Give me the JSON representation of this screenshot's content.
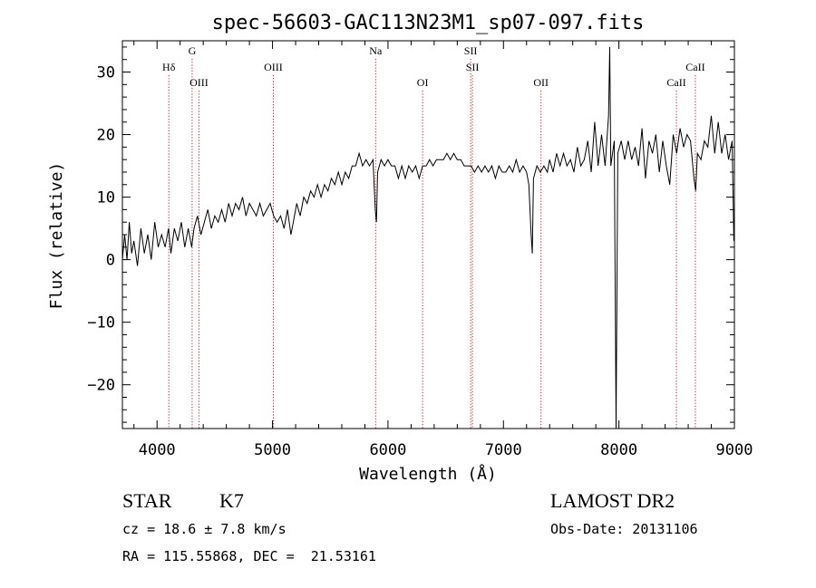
{
  "chart_data": {
    "type": "line",
    "title": "spec-56603-GAC113N23M1_sp07-097.fits",
    "xlabel": "Wavelength (Å)",
    "ylabel": "Flux (relative)",
    "xlim": [
      3700,
      9000
    ],
    "ylim": [
      -27,
      35
    ],
    "xticks": [
      4000,
      5000,
      6000,
      7000,
      8000,
      9000
    ],
    "yticks": [
      -20,
      -10,
      0,
      10,
      20,
      30
    ],
    "x_minor_step": 200,
    "y_minor_step": 2,
    "series": [
      {
        "points": [
          [
            3700,
            0
          ],
          [
            3720,
            4
          ],
          [
            3740,
            0
          ],
          [
            3760,
            6
          ],
          [
            3780,
            1
          ],
          [
            3800,
            3
          ],
          [
            3830,
            -1
          ],
          [
            3860,
            5
          ],
          [
            3890,
            1
          ],
          [
            3920,
            4
          ],
          [
            3950,
            0
          ],
          [
            3980,
            6
          ],
          [
            4010,
            2
          ],
          [
            4040,
            4
          ],
          [
            4070,
            2
          ],
          [
            4100,
            5
          ],
          [
            4120,
            1
          ],
          [
            4150,
            5
          ],
          [
            4180,
            3
          ],
          [
            4210,
            6
          ],
          [
            4240,
            2
          ],
          [
            4270,
            5
          ],
          [
            4300,
            2
          ],
          [
            4320,
            5
          ],
          [
            4350,
            7
          ],
          [
            4380,
            4
          ],
          [
            4410,
            6
          ],
          [
            4440,
            8
          ],
          [
            4470,
            5
          ],
          [
            4500,
            7
          ],
          [
            4530,
            6
          ],
          [
            4560,
            8
          ],
          [
            4590,
            6
          ],
          [
            4620,
            9
          ],
          [
            4650,
            7
          ],
          [
            4680,
            9
          ],
          [
            4710,
            8
          ],
          [
            4740,
            10
          ],
          [
            4770,
            7
          ],
          [
            4800,
            9
          ],
          [
            4830,
            8
          ],
          [
            4860,
            7
          ],
          [
            4890,
            9
          ],
          [
            4920,
            7
          ],
          [
            4950,
            8
          ],
          [
            4980,
            9
          ],
          [
            5010,
            7
          ],
          [
            5040,
            6
          ],
          [
            5070,
            7
          ],
          [
            5100,
            5
          ],
          [
            5130,
            8
          ],
          [
            5160,
            4
          ],
          [
            5180,
            6
          ],
          [
            5210,
            9
          ],
          [
            5240,
            7
          ],
          [
            5270,
            10
          ],
          [
            5300,
            9
          ],
          [
            5330,
            11
          ],
          [
            5360,
            10
          ],
          [
            5390,
            12
          ],
          [
            5420,
            10
          ],
          [
            5450,
            12
          ],
          [
            5480,
            11
          ],
          [
            5510,
            13
          ],
          [
            5540,
            12
          ],
          [
            5570,
            14
          ],
          [
            5600,
            12
          ],
          [
            5630,
            14
          ],
          [
            5660,
            13
          ],
          [
            5690,
            15
          ],
          [
            5720,
            15
          ],
          [
            5750,
            17
          ],
          [
            5780,
            15
          ],
          [
            5810,
            16
          ],
          [
            5840,
            15
          ],
          [
            5870,
            16
          ],
          [
            5890,
            8
          ],
          [
            5900,
            6
          ],
          [
            5910,
            14
          ],
          [
            5940,
            16
          ],
          [
            5970,
            15
          ],
          [
            6000,
            16
          ],
          [
            6030,
            15
          ],
          [
            6060,
            15
          ],
          [
            6090,
            13
          ],
          [
            6120,
            15
          ],
          [
            6150,
            13
          ],
          [
            6180,
            15
          ],
          [
            6210,
            14
          ],
          [
            6240,
            15
          ],
          [
            6270,
            13
          ],
          [
            6300,
            15
          ],
          [
            6330,
            15
          ],
          [
            6360,
            16
          ],
          [
            6390,
            15
          ],
          [
            6420,
            16
          ],
          [
            6450,
            16
          ],
          [
            6480,
            16
          ],
          [
            6510,
            17
          ],
          [
            6540,
            16
          ],
          [
            6570,
            17
          ],
          [
            6600,
            16
          ],
          [
            6630,
            16
          ],
          [
            6660,
            15
          ],
          [
            6690,
            15
          ],
          [
            6720,
            15
          ],
          [
            6750,
            14
          ],
          [
            6780,
            15
          ],
          [
            6810,
            14
          ],
          [
            6840,
            15
          ],
          [
            6870,
            14
          ],
          [
            6900,
            15
          ],
          [
            6930,
            13
          ],
          [
            6960,
            15
          ],
          [
            6990,
            14
          ],
          [
            7020,
            14
          ],
          [
            7050,
            15
          ],
          [
            7080,
            14
          ],
          [
            7110,
            16
          ],
          [
            7140,
            14
          ],
          [
            7170,
            15
          ],
          [
            7200,
            14
          ],
          [
            7220,
            12
          ],
          [
            7240,
            4
          ],
          [
            7250,
            1
          ],
          [
            7260,
            13
          ],
          [
            7290,
            15
          ],
          [
            7320,
            14
          ],
          [
            7350,
            15
          ],
          [
            7380,
            14
          ],
          [
            7400,
            16
          ],
          [
            7430,
            14
          ],
          [
            7460,
            17
          ],
          [
            7490,
            15
          ],
          [
            7520,
            17
          ],
          [
            7550,
            15
          ],
          [
            7580,
            16
          ],
          [
            7610,
            14
          ],
          [
            7640,
            18
          ],
          [
            7670,
            15
          ],
          [
            7700,
            16
          ],
          [
            7730,
            19
          ],
          [
            7760,
            14
          ],
          [
            7790,
            22
          ],
          [
            7820,
            15
          ],
          [
            7850,
            20
          ],
          [
            7880,
            15
          ],
          [
            7910,
            23
          ],
          [
            7920,
            34
          ],
          [
            7930,
            15
          ],
          [
            7960,
            19
          ],
          [
            7975,
            -27
          ],
          [
            7990,
            17
          ],
          [
            8020,
            19
          ],
          [
            8050,
            16
          ],
          [
            8080,
            19
          ],
          [
            8110,
            16
          ],
          [
            8140,
            18
          ],
          [
            8170,
            15
          ],
          [
            8200,
            21
          ],
          [
            8230,
            13
          ],
          [
            8260,
            19
          ],
          [
            8290,
            17
          ],
          [
            8320,
            20
          ],
          [
            8350,
            14
          ],
          [
            8380,
            19
          ],
          [
            8410,
            15
          ],
          [
            8440,
            12
          ],
          [
            8470,
            20
          ],
          [
            8500,
            17
          ],
          [
            8530,
            21
          ],
          [
            8560,
            18
          ],
          [
            8590,
            20
          ],
          [
            8620,
            19
          ],
          [
            8650,
            13
          ],
          [
            8665,
            11
          ],
          [
            8680,
            17
          ],
          [
            8710,
            16
          ],
          [
            8740,
            19
          ],
          [
            8770,
            18
          ],
          [
            8800,
            23
          ],
          [
            8830,
            17
          ],
          [
            8860,
            22
          ],
          [
            8890,
            17
          ],
          [
            8920,
            20
          ],
          [
            8950,
            16
          ],
          [
            8980,
            19
          ],
          [
            8995,
            3
          ]
        ]
      }
    ],
    "lines": [
      {
        "label": "Hδ",
        "x": 4102,
        "row": 1
      },
      {
        "label": "G",
        "x": 4304,
        "row": 0
      },
      {
        "label": "OIII",
        "x": 4363,
        "row": 2
      },
      {
        "label": "OIII",
        "x": 5007,
        "row": 1
      },
      {
        "label": "Na",
        "x": 5893,
        "row": 0
      },
      {
        "label": "OI",
        "x": 6300,
        "row": 2
      },
      {
        "label": "SII",
        "x": 6716,
        "row": 0
      },
      {
        "label": "SII",
        "x": 6731,
        "row": 1
      },
      {
        "label": "OII",
        "x": 7325,
        "row": 2
      },
      {
        "label": "CaII",
        "x": 8498,
        "row": 2
      },
      {
        "label": "CaII",
        "x": 8662,
        "row": 1
      }
    ]
  },
  "info": {
    "object_type": "STAR",
    "subclass": "K7",
    "survey": "LAMOST DR2",
    "redshift": "cz = 18.6 ± 7.8 km/s",
    "obs_date": "Obs-Date: 20131106",
    "coords": "RA = 115.55868, DEC =  21.53161"
  },
  "colors": {
    "line_markers": "#b22222",
    "spectrum": "#000000"
  }
}
